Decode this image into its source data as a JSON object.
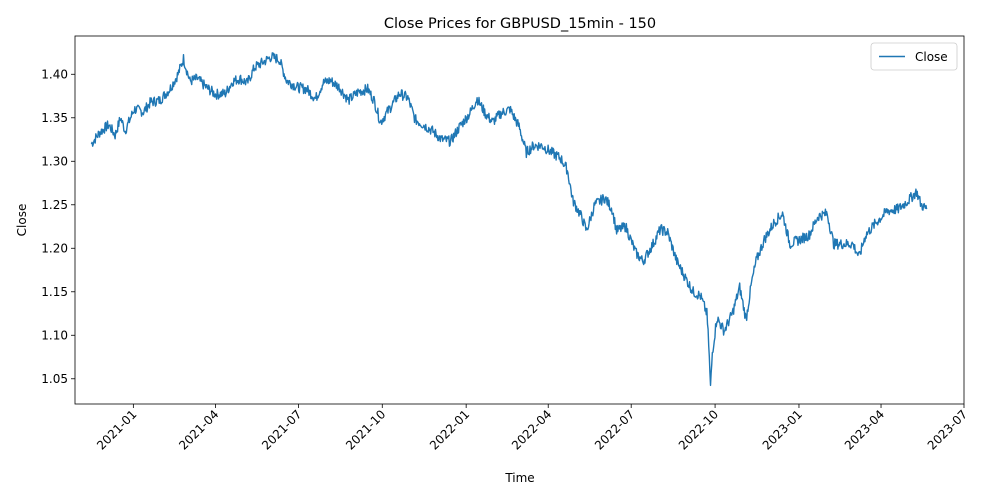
{
  "chart_data": {
    "type": "line",
    "title": "Close Prices for GBPUSD_15min - 150",
    "xlabel": "Time",
    "ylabel": "Close",
    "x_axis_type": "date",
    "xlim": [
      "2020-10-29",
      "2023-07-01"
    ],
    "ylim": [
      1.021,
      1.444
    ],
    "x_ticks": [
      "2021-01",
      "2021-04",
      "2021-07",
      "2021-10",
      "2022-01",
      "2022-04",
      "2022-07",
      "2022-10",
      "2023-01",
      "2023-04",
      "2023-07"
    ],
    "y_ticks": [
      1.05,
      1.1,
      1.15,
      1.2,
      1.25,
      1.3,
      1.35,
      1.4
    ],
    "y_tick_labels": [
      "1.05",
      "1.10",
      "1.15",
      "1.20",
      "1.25",
      "1.30",
      "1.35",
      "1.40"
    ],
    "grid": false,
    "legend_position": "top-right",
    "series": [
      {
        "name": "Close",
        "color": "#1f77b4",
        "points": [
          [
            "2020-11-16",
            1.32
          ],
          [
            "2020-11-25",
            1.333
          ],
          [
            "2020-12-05",
            1.342
          ],
          [
            "2020-12-12",
            1.33
          ],
          [
            "2020-12-18",
            1.35
          ],
          [
            "2020-12-23",
            1.335
          ],
          [
            "2021-01-02",
            1.36
          ],
          [
            "2021-01-12",
            1.357
          ],
          [
            "2021-01-20",
            1.368
          ],
          [
            "2021-01-30",
            1.37
          ],
          [
            "2021-02-10",
            1.383
          ],
          [
            "2021-02-19",
            1.4
          ],
          [
            "2021-02-25",
            1.418
          ],
          [
            "2021-03-04",
            1.392
          ],
          [
            "2021-03-12",
            1.395
          ],
          [
            "2021-03-22",
            1.385
          ],
          [
            "2021-04-01",
            1.377
          ],
          [
            "2021-04-12",
            1.378
          ],
          [
            "2021-04-20",
            1.392
          ],
          [
            "2021-04-28",
            1.395
          ],
          [
            "2021-05-06",
            1.39
          ],
          [
            "2021-05-14",
            1.408
          ],
          [
            "2021-05-25",
            1.415
          ],
          [
            "2021-06-01",
            1.42
          ],
          [
            "2021-06-10",
            1.417
          ],
          [
            "2021-06-18",
            1.393
          ],
          [
            "2021-06-30",
            1.385
          ],
          [
            "2021-07-10",
            1.383
          ],
          [
            "2021-07-20",
            1.372
          ],
          [
            "2021-07-28",
            1.39
          ],
          [
            "2021-08-05",
            1.393
          ],
          [
            "2021-08-15",
            1.385
          ],
          [
            "2021-08-25",
            1.37
          ],
          [
            "2021-09-05",
            1.38
          ],
          [
            "2021-09-15",
            1.383
          ],
          [
            "2021-09-22",
            1.37
          ],
          [
            "2021-09-29",
            1.345
          ],
          [
            "2021-10-10",
            1.362
          ],
          [
            "2021-10-20",
            1.378
          ],
          [
            "2021-10-29",
            1.373
          ],
          [
            "2021-11-06",
            1.348
          ],
          [
            "2021-11-15",
            1.342
          ],
          [
            "2021-11-25",
            1.335
          ],
          [
            "2021-12-05",
            1.325
          ],
          [
            "2021-12-15",
            1.323
          ],
          [
            "2021-12-25",
            1.34
          ],
          [
            "2022-01-05",
            1.355
          ],
          [
            "2022-01-13",
            1.372
          ],
          [
            "2022-01-22",
            1.355
          ],
          [
            "2022-01-30",
            1.345
          ],
          [
            "2022-02-08",
            1.355
          ],
          [
            "2022-02-18",
            1.36
          ],
          [
            "2022-02-28",
            1.34
          ],
          [
            "2022-03-08",
            1.31
          ],
          [
            "2022-03-16",
            1.318
          ],
          [
            "2022-03-25",
            1.318
          ],
          [
            "2022-04-05",
            1.31
          ],
          [
            "2022-04-15",
            1.303
          ],
          [
            "2022-04-22",
            1.29
          ],
          [
            "2022-04-28",
            1.255
          ],
          [
            "2022-05-08",
            1.235
          ],
          [
            "2022-05-13",
            1.22
          ],
          [
            "2022-05-22",
            1.25
          ],
          [
            "2022-06-02",
            1.258
          ],
          [
            "2022-06-10",
            1.245
          ],
          [
            "2022-06-15",
            1.22
          ],
          [
            "2022-06-25",
            1.225
          ],
          [
            "2022-07-06",
            1.195
          ],
          [
            "2022-07-14",
            1.185
          ],
          [
            "2022-07-25",
            1.205
          ],
          [
            "2022-08-02",
            1.222
          ],
          [
            "2022-08-10",
            1.218
          ],
          [
            "2022-08-20",
            1.185
          ],
          [
            "2022-08-30",
            1.165
          ],
          [
            "2022-09-07",
            1.15
          ],
          [
            "2022-09-15",
            1.145
          ],
          [
            "2022-09-22",
            1.125
          ],
          [
            "2022-09-24",
            1.09
          ],
          [
            "2022-09-26",
            1.04
          ],
          [
            "2022-09-28",
            1.08
          ],
          [
            "2022-10-03",
            1.12
          ],
          [
            "2022-10-11",
            1.105
          ],
          [
            "2022-10-20",
            1.125
          ],
          [
            "2022-10-28",
            1.155
          ],
          [
            "2022-11-04",
            1.118
          ],
          [
            "2022-11-10",
            1.16
          ],
          [
            "2022-11-15",
            1.185
          ],
          [
            "2022-11-24",
            1.21
          ],
          [
            "2022-12-05",
            1.23
          ],
          [
            "2022-12-14",
            1.24
          ],
          [
            "2022-12-22",
            1.205
          ],
          [
            "2023-01-02",
            1.21
          ],
          [
            "2023-01-12",
            1.215
          ],
          [
            "2023-01-22",
            1.237
          ],
          [
            "2023-02-01",
            1.24
          ],
          [
            "2023-02-08",
            1.205
          ],
          [
            "2023-02-18",
            1.205
          ],
          [
            "2023-03-01",
            1.205
          ],
          [
            "2023-03-08",
            1.19
          ],
          [
            "2023-03-15",
            1.215
          ],
          [
            "2023-03-27",
            1.23
          ],
          [
            "2023-04-08",
            1.243
          ],
          [
            "2023-04-20",
            1.245
          ],
          [
            "2023-05-01",
            1.255
          ],
          [
            "2023-05-10",
            1.265
          ],
          [
            "2023-05-15",
            1.25
          ],
          [
            "2023-05-21",
            1.245
          ]
        ]
      }
    ]
  }
}
